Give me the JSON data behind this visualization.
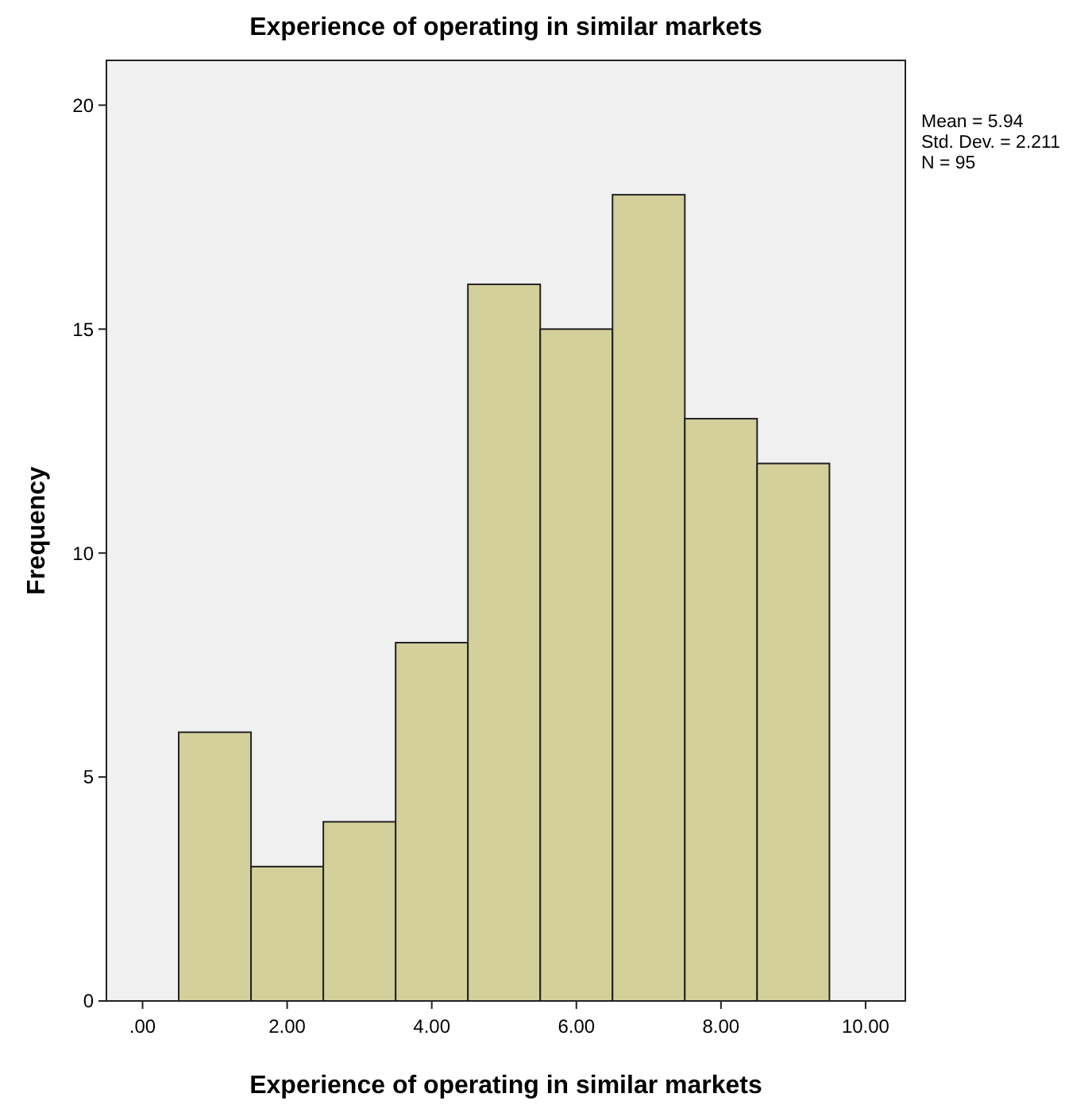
{
  "chart_data": {
    "type": "histogram",
    "title": "Experience of operating in similar markets",
    "xlabel": "Experience of operating in similar markets",
    "ylabel": "Frequency",
    "bins": [
      0.5,
      1.5,
      2.5,
      3.5,
      4.5,
      5.5,
      6.5,
      7.5,
      8.5,
      9.5
    ],
    "values": [
      6,
      3,
      4,
      8,
      16,
      15,
      18,
      13,
      12
    ],
    "color": "#d4d09c",
    "xlim": [
      -0.5,
      10.55
    ],
    "ylim": [
      0,
      21
    ],
    "xticks": [
      {
        "value": 0,
        "label": ".00"
      },
      {
        "value": 2,
        "label": "2.00"
      },
      {
        "value": 4,
        "label": "4.00"
      },
      {
        "value": 6,
        "label": "6.00"
      },
      {
        "value": 8,
        "label": "8.00"
      },
      {
        "value": 10,
        "label": "10.00"
      }
    ],
    "yticks": [
      0,
      5,
      10,
      15,
      20
    ],
    "annotations": [
      "Mean = 5.94",
      "Std. Dev. = 2.211",
      "N = 95"
    ]
  }
}
